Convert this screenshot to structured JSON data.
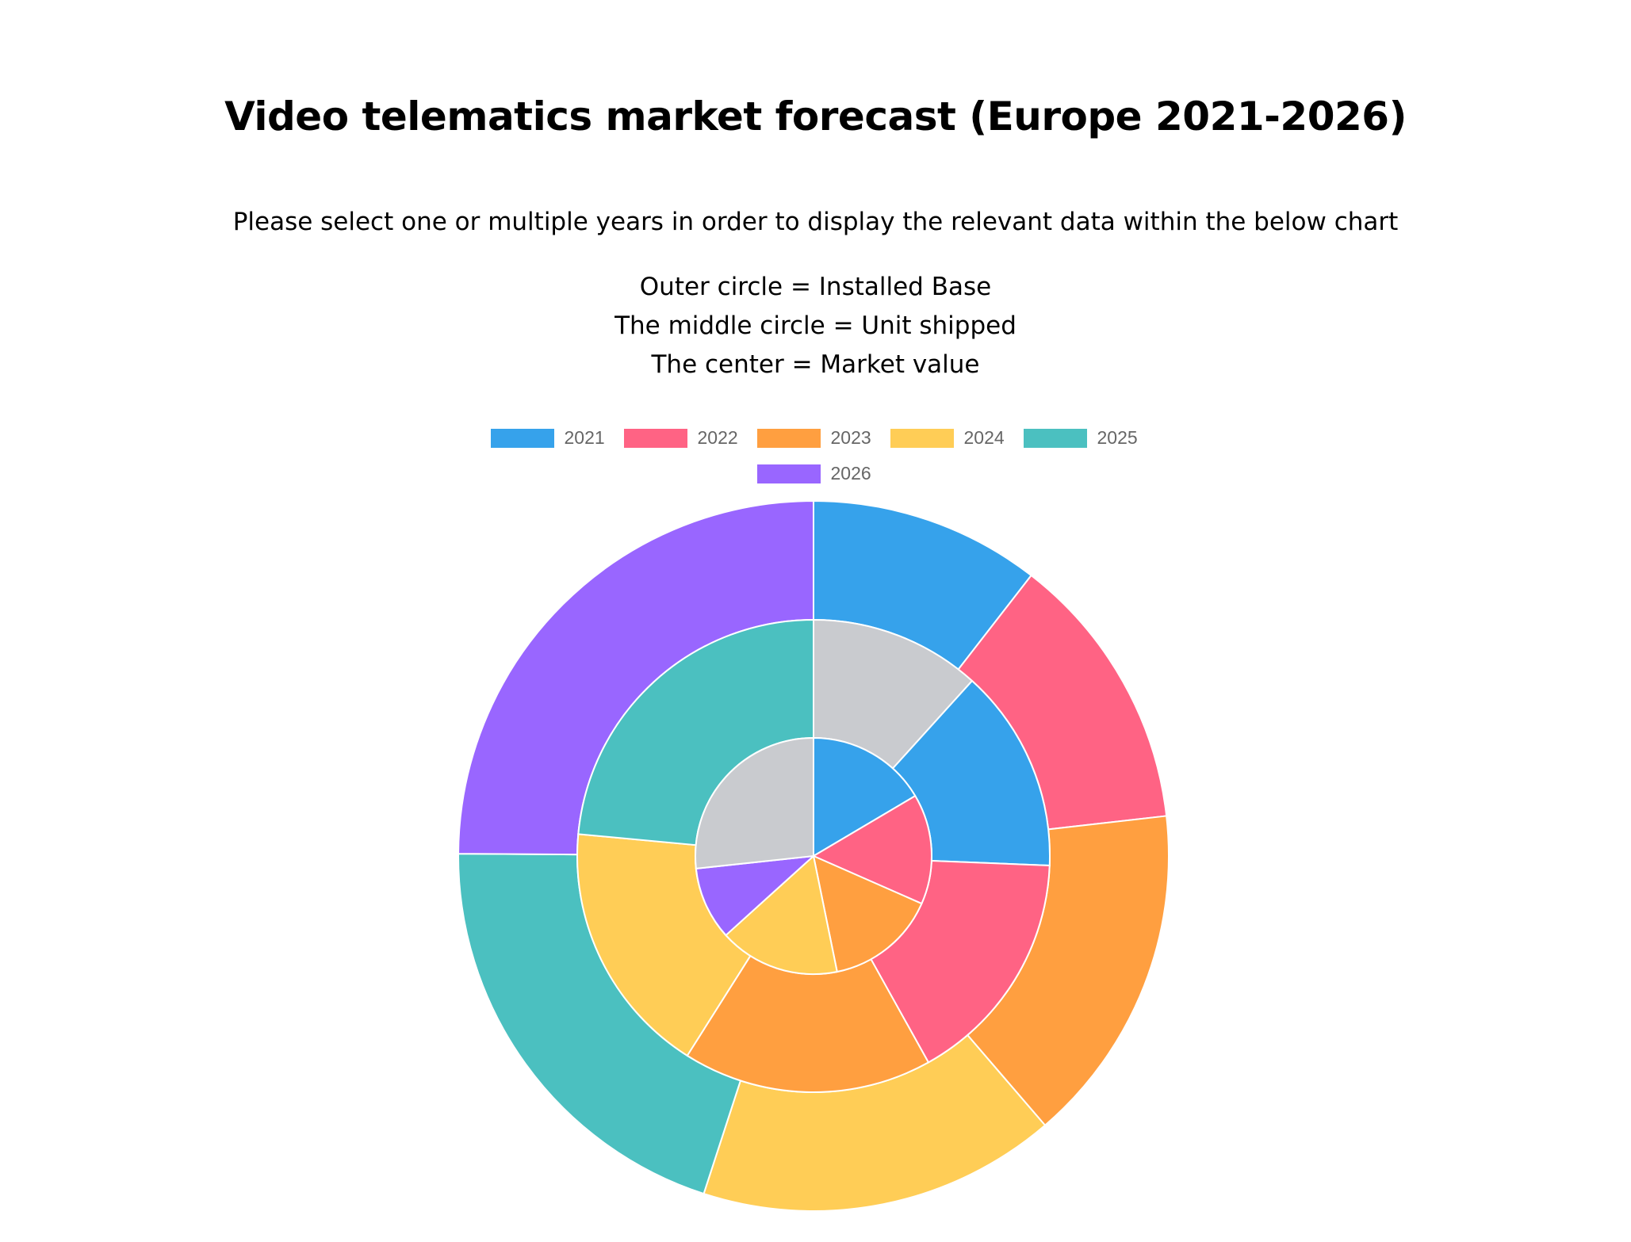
{
  "page": {
    "title": "Video telematics market forecast (Europe 2021-2026)",
    "subtitle": "Please select one or multiple years in order to display the relevant data within the below chart",
    "explanation": [
      "Outer circle = Installed Base",
      "The middle circle = Unit shipped",
      "The center = Market value"
    ]
  },
  "chart_data": {
    "type": "pie",
    "variant": "multi-level concentric pie",
    "legend_position": "top",
    "categories": [
      "2021",
      "2022",
      "2023",
      "2024",
      "2025",
      "2026"
    ],
    "colors": [
      "#36a2eb",
      "#ff6384",
      "#ff9f40",
      "#ffcd56",
      "#4bc0c0",
      "#9966ff"
    ],
    "extra_segment_color": "#c9cbcf",
    "rings": [
      {
        "name": "Installed Base",
        "level": "outer",
        "values_percent": [
          10.5,
          12.7,
          15.5,
          16.3,
          20.1,
          24.9
        ],
        "extra_segment": null
      },
      {
        "name": "Unit shipped",
        "level": "middle",
        "values_percent": [
          12.5,
          14.6,
          15.3,
          15.7,
          21.1,
          0
        ],
        "extra_segment": {
          "value_percent": 10.5,
          "position": "first"
        }
      },
      {
        "name": "Market value",
        "level": "center",
        "values_percent": [
          16.5,
          15.1,
          15.2,
          16.5,
          0,
          10.0
        ],
        "extra_segment": {
          "value_percent": 26.7,
          "position": "last"
        }
      }
    ]
  }
}
